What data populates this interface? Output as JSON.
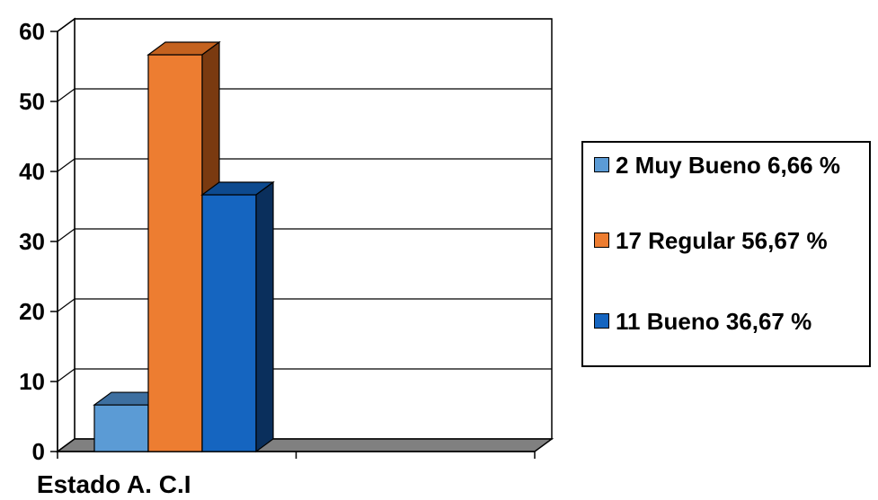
{
  "chart_data": {
    "type": "bar",
    "categories": [
      "Estado A. C.I"
    ],
    "series": [
      {
        "name": "2 Muy Bueno 6,66 %",
        "values": [
          6.66
        ],
        "color": "#5b9bd5",
        "top_color": "#3d6fa0",
        "side_color": "#2e5a85"
      },
      {
        "name": "17 Regular 56,67 %",
        "values": [
          56.67
        ],
        "color": "#ed7d31",
        "top_color": "#c4621f",
        "side_color": "#7a3a10"
      },
      {
        "name": "11 Bueno 36,67 %",
        "values": [
          36.67
        ],
        "color": "#1565c0",
        "top_color": "#0d4a8f",
        "side_color": "#0a2f5c"
      }
    ],
    "ylim": [
      0,
      60
    ],
    "yticks": [
      0,
      10,
      20,
      30,
      40,
      50,
      60
    ],
    "grid": true,
    "legend": "right",
    "title": "",
    "xlabel": "",
    "ylabel": ""
  }
}
